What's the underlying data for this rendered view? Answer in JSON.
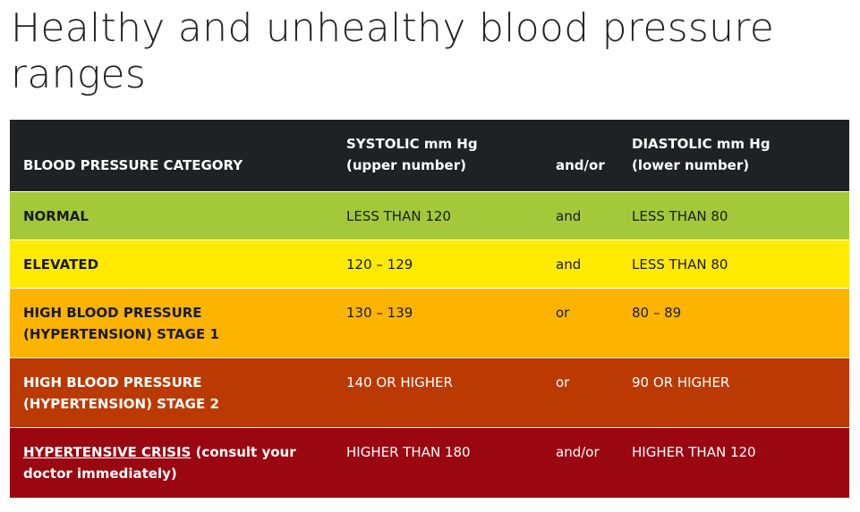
{
  "page": {
    "title": "Healthy and unhealthy blood pressure ranges"
  },
  "table": {
    "headers": {
      "category": "BLOOD PRESSURE CATEGORY",
      "systolic_line1": "SYSTOLIC mm Hg",
      "systolic_line2": "(upper number)",
      "andor": "and/or",
      "diastolic_line1": "DIASTOLIC mm Hg",
      "diastolic_line2": "(lower number)"
    },
    "rows": [
      {
        "category_line1": "NORMAL",
        "category_line2": "",
        "systolic": "LESS THAN 120",
        "andor": "and",
        "diastolic": "LESS THAN 80",
        "color": "#a3c93a"
      },
      {
        "category_line1": "ELEVATED",
        "category_line2": "",
        "systolic": "120 – 129",
        "andor": "and",
        "diastolic": "LESS THAN 80",
        "color": "#ffea00"
      },
      {
        "category_line1": "HIGH BLOOD PRESSURE",
        "category_line2": "(HYPERTENSION) STAGE 1",
        "systolic": "130 – 139",
        "andor": "or",
        "diastolic": "80 – 89",
        "color": "#fdb400"
      },
      {
        "category_line1": "HIGH BLOOD PRESSURE",
        "category_line2": "(HYPERTENSION) STAGE 2",
        "systolic": "140 OR HIGHER",
        "andor": "or",
        "diastolic": "90 OR HIGHER",
        "color": "#bb3a03"
      },
      {
        "category_link": "HYPERTENSIVE CRISIS",
        "category_rest": " (consult your",
        "category_line2": "doctor immediately)",
        "systolic": "HIGHER THAN 180",
        "andor": "and/or",
        "diastolic": "HIGHER THAN 120",
        "color": "#9a0711"
      }
    ]
  }
}
